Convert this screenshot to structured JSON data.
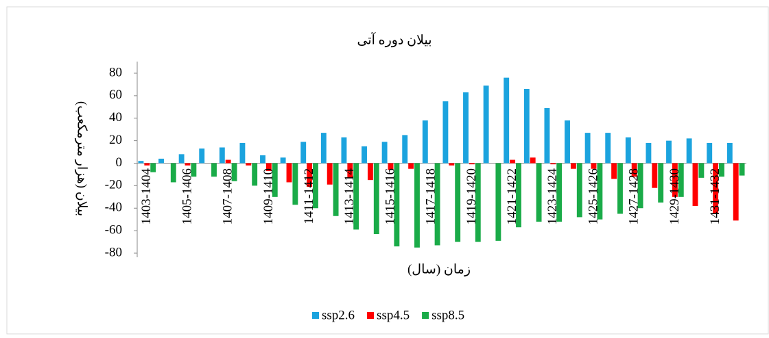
{
  "chart_data": {
    "type": "bar",
    "title": "بیلان دوره آتی",
    "y_label": "بیلان (هزار مترمکعب)",
    "x_label": "زمان (سال)",
    "categories": [
      "1403-1404",
      null,
      "1405-1406",
      null,
      "1407-1408",
      null,
      "1409-1410",
      null,
      "1411-1412",
      null,
      "1413-1414",
      null,
      "1415-1416",
      null,
      "1417-1418",
      null,
      "1419-1420",
      null,
      "1421-1422",
      null,
      "1423-1424",
      null,
      "1425-1426",
      null,
      "1427-1428",
      null,
      "1429-1430",
      null,
      "1431-1432",
      null
    ],
    "series": [
      {
        "name": "ssp2.6",
        "color": "#1ba3de",
        "values": [
          2,
          4,
          8,
          13,
          14,
          18,
          7,
          5,
          19,
          27,
          23,
          15,
          19,
          25,
          38,
          55,
          63,
          69,
          76,
          66,
          49,
          38,
          27,
          27,
          23,
          18,
          20,
          22,
          18,
          18
        ]
      },
      {
        "name": "ssp4.5",
        "color": "#ff0000",
        "values": [
          -2,
          0,
          -2,
          0,
          3,
          -2,
          -7,
          -17,
          -21,
          -19,
          -13,
          -15,
          -6,
          -5,
          0,
          -2,
          -1,
          0,
          3,
          5,
          -1,
          -5,
          -5,
          -14,
          -12,
          -22,
          -30,
          -38,
          -45,
          -51
        ]
      },
      {
        "name": "ssp8.5",
        "color": "#1aab48",
        "values": [
          -8,
          -17,
          -12,
          -12,
          -16,
          -20,
          -30,
          -37,
          -40,
          -47,
          -59,
          -63,
          -74,
          -75,
          -73,
          -70,
          -70,
          -69,
          -57,
          -52,
          -52,
          -48,
          -50,
          -45,
          -40,
          -35,
          -30,
          -13,
          -12,
          -11
        ]
      }
    ],
    "ylim": [
      -80,
      80
    ],
    "yticks": [
      -80,
      -60,
      -40,
      -20,
      0,
      20,
      40,
      60,
      80
    ],
    "legend": "bottom",
    "grid": false
  }
}
